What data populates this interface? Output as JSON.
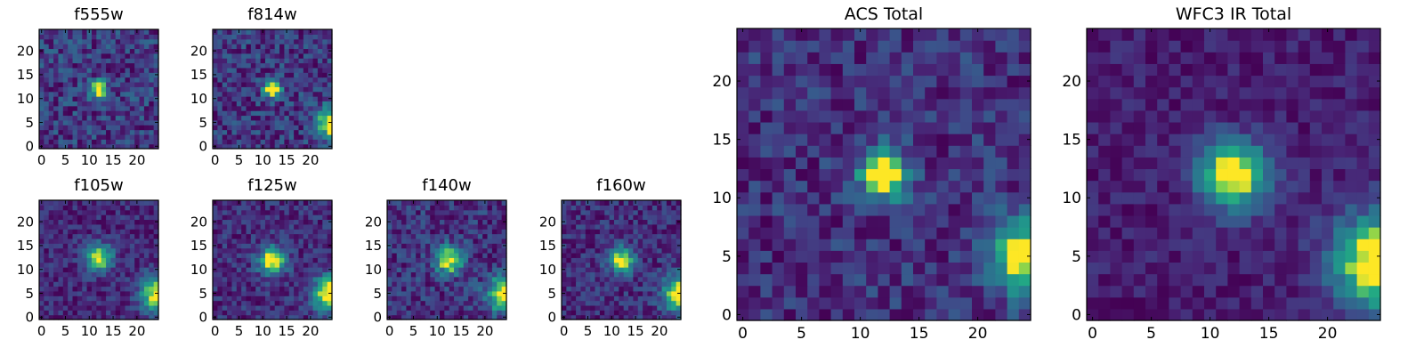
{
  "chart_data": [
    {
      "type": "heatmap",
      "title": "f555w",
      "size": "small",
      "xticks": [
        "0",
        "5",
        "10",
        "15",
        "20"
      ],
      "yticks": [
        "0",
        "5",
        "10",
        "15",
        "20"
      ],
      "xlim": [
        -0.5,
        24.5
      ],
      "ylim": [
        -0.5,
        24.5
      ],
      "blobs": [
        {
          "x": 12,
          "y": 12,
          "amp": 1.0,
          "sigma": 1.3
        }
      ],
      "noise": 0.25,
      "seed": 11,
      "colormap": "viridis"
    },
    {
      "type": "heatmap",
      "title": "f814w",
      "size": "small",
      "xticks": [
        "0",
        "5",
        "10",
        "15",
        "20"
      ],
      "yticks": [
        "0",
        "5",
        "10",
        "15",
        "20"
      ],
      "xlim": [
        -0.5,
        24.5
      ],
      "ylim": [
        -0.5,
        24.5
      ],
      "blobs": [
        {
          "x": 12,
          "y": 12,
          "amp": 0.9,
          "sigma": 1.3
        },
        {
          "x": 24.5,
          "y": 5,
          "amp": 0.9,
          "sigma": 2.2
        }
      ],
      "noise": 0.2,
      "seed": 23,
      "colormap": "viridis"
    },
    {
      "type": "heatmap",
      "title": "f105w",
      "size": "small",
      "xticks": [
        "0",
        "5",
        "10",
        "15",
        "20"
      ],
      "yticks": [
        "0",
        "5",
        "10",
        "15",
        "20"
      ],
      "xlim": [
        -0.5,
        24.5
      ],
      "ylim": [
        -0.5,
        24.5
      ],
      "blobs": [
        {
          "x": 12,
          "y": 12.5,
          "amp": 0.85,
          "sigma": 2.0
        },
        {
          "x": 24.5,
          "y": 5,
          "amp": 0.95,
          "sigma": 2.6
        }
      ],
      "noise": 0.15,
      "seed": 37,
      "colormap": "viridis"
    },
    {
      "type": "heatmap",
      "title": "f125w",
      "size": "small",
      "xticks": [
        "0",
        "5",
        "10",
        "15",
        "20"
      ],
      "yticks": [
        "0",
        "5",
        "10",
        "15",
        "20"
      ],
      "xlim": [
        -0.5,
        24.5
      ],
      "ylim": [
        -0.5,
        24.5
      ],
      "blobs": [
        {
          "x": 12,
          "y": 12,
          "amp": 0.85,
          "sigma": 2.0
        },
        {
          "x": 24.5,
          "y": 5,
          "amp": 0.95,
          "sigma": 2.6
        }
      ],
      "noise": 0.15,
      "seed": 41,
      "colormap": "viridis"
    },
    {
      "type": "heatmap",
      "title": "f140w",
      "size": "small",
      "xticks": [
        "0",
        "5",
        "10",
        "15",
        "20"
      ],
      "yticks": [
        "0",
        "5",
        "10",
        "15",
        "20"
      ],
      "xlim": [
        -0.5,
        24.5
      ],
      "ylim": [
        -0.5,
        24.5
      ],
      "blobs": [
        {
          "x": 12.5,
          "y": 12,
          "amp": 0.8,
          "sigma": 2.0
        },
        {
          "x": 24.5,
          "y": 5,
          "amp": 0.95,
          "sigma": 2.6
        }
      ],
      "noise": 0.18,
      "seed": 53,
      "colormap": "viridis"
    },
    {
      "type": "heatmap",
      "title": "f160w",
      "size": "small",
      "xticks": [
        "0",
        "5",
        "10",
        "15",
        "20"
      ],
      "yticks": [
        "0",
        "5",
        "10",
        "15",
        "20"
      ],
      "xlim": [
        -0.5,
        24.5
      ],
      "ylim": [
        -0.5,
        24.5
      ],
      "blobs": [
        {
          "x": 12,
          "y": 12,
          "amp": 0.85,
          "sigma": 1.9
        },
        {
          "x": 24.5,
          "y": 5,
          "amp": 0.95,
          "sigma": 2.6
        }
      ],
      "noise": 0.17,
      "seed": 67,
      "colormap": "viridis"
    },
    {
      "type": "heatmap",
      "title": "ACS Total",
      "size": "large",
      "xticks": [
        "0",
        "5",
        "10",
        "15",
        "20"
      ],
      "yticks": [
        "0",
        "5",
        "10",
        "15",
        "20"
      ],
      "xlim": [
        -0.5,
        24.5
      ],
      "ylim": [
        -0.5,
        24.5
      ],
      "blobs": [
        {
          "x": 12,
          "y": 12,
          "amp": 1.1,
          "sigma": 1.4
        },
        {
          "x": 24.5,
          "y": 5,
          "amp": 0.9,
          "sigma": 2.3
        }
      ],
      "noise": 0.18,
      "seed": 79,
      "colormap": "viridis"
    },
    {
      "type": "heatmap",
      "title": "WFC3 IR Total",
      "size": "large",
      "xticks": [
        "0",
        "5",
        "10",
        "15",
        "20"
      ],
      "yticks": [
        "0",
        "5",
        "10",
        "15",
        "20"
      ],
      "xlim": [
        -0.5,
        24.5
      ],
      "ylim": [
        -0.5,
        24.5
      ],
      "blobs": [
        {
          "x": 12,
          "y": 12,
          "amp": 0.95,
          "sigma": 2.0
        },
        {
          "x": 24.5,
          "y": 4.5,
          "amp": 1.0,
          "sigma": 2.8
        }
      ],
      "noise": 0.1,
      "seed": 97,
      "colormap": "viridis"
    }
  ]
}
